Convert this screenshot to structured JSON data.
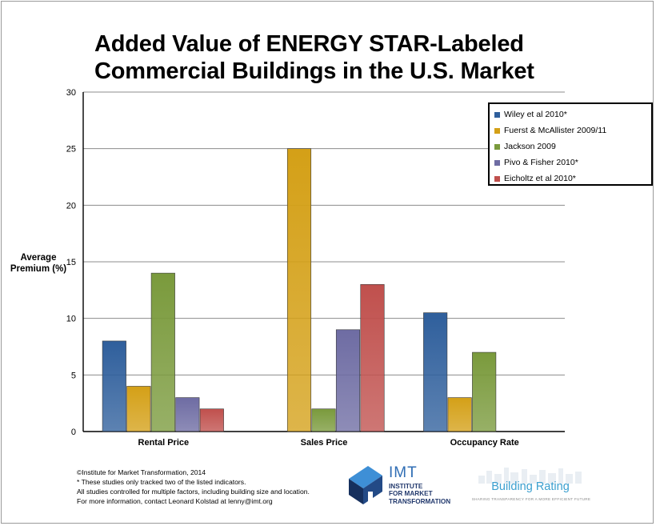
{
  "header": {
    "title_line1": "Added Value of ENERGY STAR-Labeled",
    "title_line2": "Commercial Buildings in the U.S. Market"
  },
  "chart_data": {
    "type": "bar",
    "title": "Added Value of ENERGY STAR-Labeled Commercial Buildings in the U.S. Market",
    "xlabel": "",
    "ylabel": "Average Premium (%)",
    "ylabel_line1": "Average",
    "ylabel_line2": "Premium (%)",
    "ylim": [
      0,
      30
    ],
    "yticks": [
      0,
      5,
      10,
      15,
      20,
      25,
      30
    ],
    "grid": true,
    "legend_position": "top-right",
    "categories": [
      "Rental Price",
      "Sales Price",
      "Occupancy Rate"
    ],
    "series": [
      {
        "name": "Wiley et al 2010*",
        "color": "#2f5f9c",
        "values": [
          8,
          null,
          10.5
        ]
      },
      {
        "name": "Fuerst & McAllister 2009/11",
        "color": "#d4a017",
        "values": [
          4,
          25,
          3
        ]
      },
      {
        "name": "Jackson 2009",
        "color": "#7a9a3c",
        "values": [
          14,
          2,
          7
        ]
      },
      {
        "name": "Pivo & Fisher 2010*",
        "color": "#6e6ca3",
        "values": [
          3,
          9,
          null
        ]
      },
      {
        "name": "Eicholtz et al 2010*",
        "color": "#c0504d",
        "values": [
          2,
          13,
          null
        ]
      }
    ]
  },
  "footer": {
    "line1": "©Institute for Market Transformation, 2014",
    "line2": "* These studies only tracked two of the listed indicators.",
    "line3": "All studies controlled for multiple factors, including building size and location.",
    "line4": "For more information, contact Leonard Kolstad at lenny@imt.org"
  },
  "logos": {
    "imt_word": "IMT",
    "imt_sub1": "INSTITUTE",
    "imt_sub2": "FOR MARKET",
    "imt_sub3": "TRANSFORMATION",
    "br_word": "Building Rating",
    "br_tag": "SHARING TRANSPARENCY FOR A MORE EFFICIENT FUTURE"
  }
}
